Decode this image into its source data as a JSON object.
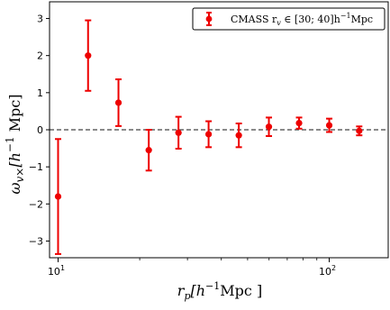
{
  "chart_data": {
    "type": "scatter",
    "xlabel_main": "r",
    "xlabel_sub": "p",
    "xlabel_bracket": "[h",
    "xlabel_exp": "−1",
    "xlabel_unit": "Mpc ]",
    "ylabel_main": "ω",
    "ylabel_sub": "v×",
    "ylabel_bracket": "[h",
    "ylabel_exp": "−1",
    "ylabel_unit": " Mpc]",
    "xscale": "log",
    "xlim": [
      9.3,
      165
    ],
    "ylim": [
      -3.45,
      3.45
    ],
    "x_ticks": [
      {
        "value": 10,
        "base": "10",
        "exp": "1"
      },
      {
        "value": 100,
        "base": "10",
        "exp": "2"
      }
    ],
    "y_ticks": [
      3,
      2,
      1,
      0,
      -1,
      -2,
      -3
    ],
    "y_tick_labels": [
      "3",
      "2",
      "1",
      "0",
      "−1",
      "−2",
      "−3"
    ],
    "reference_line": {
      "y": 0,
      "style": "dashed"
    },
    "legend": {
      "position": "top-right",
      "label": "CMASS r",
      "label_sub": "v",
      "label_set": " ∈ [30; 40]h",
      "label_exp": "−1",
      "label_unit": "Mpc"
    },
    "color": "#ee0000",
    "series": [
      {
        "x": [
          10.0,
          12.9,
          16.7,
          21.6,
          27.8,
          35.9,
          46.4,
          59.9,
          77.4,
          100.0,
          129.0
        ],
        "y": [
          -1.8,
          2.0,
          0.73,
          -0.55,
          -0.08,
          -0.12,
          -0.15,
          0.08,
          0.18,
          0.12,
          -0.03
        ],
        "yerr": [
          1.55,
          0.95,
          0.63,
          0.55,
          0.43,
          0.35,
          0.32,
          0.25,
          0.15,
          0.18,
          0.12
        ]
      }
    ]
  }
}
